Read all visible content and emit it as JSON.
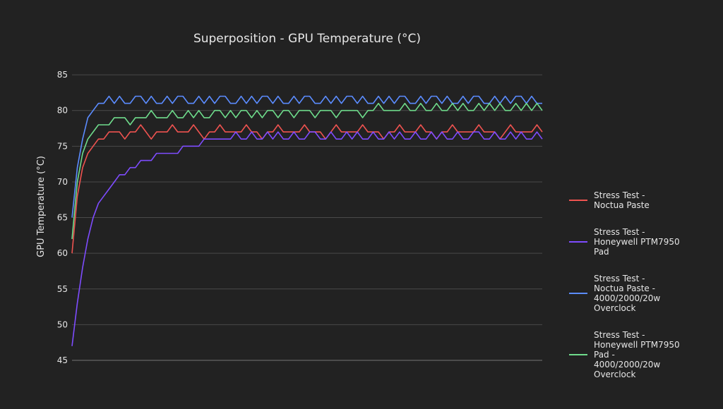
{
  "chart_data": {
    "type": "line",
    "title": "Superposition - GPU Temperature (°C)",
    "xlabel": "",
    "ylabel": "GPU Temperature (°C)",
    "ylim": [
      45,
      86
    ],
    "yticks": [
      45,
      50,
      55,
      60,
      65,
      70,
      75,
      80,
      85
    ],
    "grid": true,
    "legend_position": "right",
    "series": [
      {
        "name": "Stress Test - Noctua Paste",
        "color": "#ef5350",
        "values": [
          60,
          68,
          72,
          74,
          75,
          76,
          76,
          77,
          77,
          77,
          76,
          77,
          77,
          78,
          77,
          76,
          77,
          77,
          77,
          78,
          77,
          77,
          77,
          78,
          77,
          76,
          77,
          77,
          78,
          77,
          77,
          77,
          77,
          78,
          77,
          77,
          76,
          77,
          77,
          78,
          77,
          77,
          77,
          77,
          78,
          77,
          77,
          77,
          76,
          77,
          78,
          77,
          77,
          77,
          77,
          78,
          77,
          77,
          77,
          76,
          77,
          77,
          78,
          77,
          77,
          77,
          78,
          77,
          77,
          76,
          77,
          77,
          78,
          77,
          77,
          77,
          77,
          78,
          77,
          77,
          77,
          76,
          77,
          78,
          77,
          77,
          77,
          77,
          78,
          77
        ]
      },
      {
        "name": "Stress Test - Honeywell PTM7950 Pad",
        "color": "#7e4cff",
        "values": [
          47,
          53,
          58,
          62,
          65,
          67,
          68,
          69,
          70,
          71,
          71,
          72,
          72,
          73,
          73,
          73,
          74,
          74,
          74,
          74,
          74,
          75,
          75,
          75,
          75,
          76,
          76,
          76,
          76,
          76,
          76,
          77,
          76,
          76,
          77,
          76,
          76,
          77,
          76,
          77,
          76,
          76,
          77,
          76,
          76,
          77,
          77,
          76,
          76,
          77,
          76,
          76,
          77,
          76,
          77,
          76,
          76,
          77,
          76,
          76,
          77,
          76,
          77,
          76,
          76,
          77,
          76,
          76,
          77,
          76,
          77,
          76,
          76,
          77,
          76,
          76,
          77,
          77,
          76,
          76,
          77,
          76,
          76,
          77,
          76,
          77,
          76,
          76,
          77,
          76
        ]
      },
      {
        "name": "Stress Test - Noctua Paste - 4000/2000/20w Overclock",
        "color": "#5b8cff",
        "values": [
          65,
          72,
          76,
          79,
          80,
          81,
          81,
          82,
          81,
          82,
          81,
          81,
          82,
          82,
          81,
          82,
          81,
          81,
          82,
          81,
          82,
          82,
          81,
          81,
          82,
          81,
          82,
          81,
          82,
          82,
          81,
          81,
          82,
          81,
          82,
          81,
          82,
          82,
          81,
          82,
          81,
          81,
          82,
          81,
          82,
          82,
          81,
          81,
          82,
          81,
          82,
          81,
          82,
          82,
          81,
          82,
          81,
          81,
          82,
          81,
          82,
          81,
          82,
          82,
          81,
          81,
          82,
          81,
          82,
          82,
          81,
          82,
          81,
          81,
          82,
          81,
          82,
          82,
          81,
          81,
          82,
          81,
          82,
          81,
          82,
          82,
          81,
          82,
          81,
          81
        ]
      },
      {
        "name": "Stress Test - Honeywell PTM7950 Pad - 4000/2000/20w Overclock",
        "color": "#6fdc8c",
        "values": [
          62,
          70,
          74,
          76,
          77,
          78,
          78,
          78,
          79,
          79,
          79,
          78,
          79,
          79,
          79,
          80,
          79,
          79,
          79,
          80,
          79,
          79,
          80,
          79,
          80,
          79,
          79,
          80,
          80,
          79,
          80,
          79,
          80,
          80,
          79,
          80,
          79,
          80,
          80,
          79,
          80,
          80,
          79,
          80,
          80,
          80,
          79,
          80,
          80,
          80,
          79,
          80,
          80,
          80,
          80,
          79,
          80,
          80,
          81,
          80,
          80,
          80,
          80,
          81,
          80,
          80,
          81,
          80,
          80,
          81,
          80,
          80,
          81,
          80,
          81,
          80,
          80,
          81,
          80,
          81,
          80,
          81,
          80,
          80,
          81,
          80,
          81,
          80,
          81,
          80
        ]
      }
    ]
  }
}
